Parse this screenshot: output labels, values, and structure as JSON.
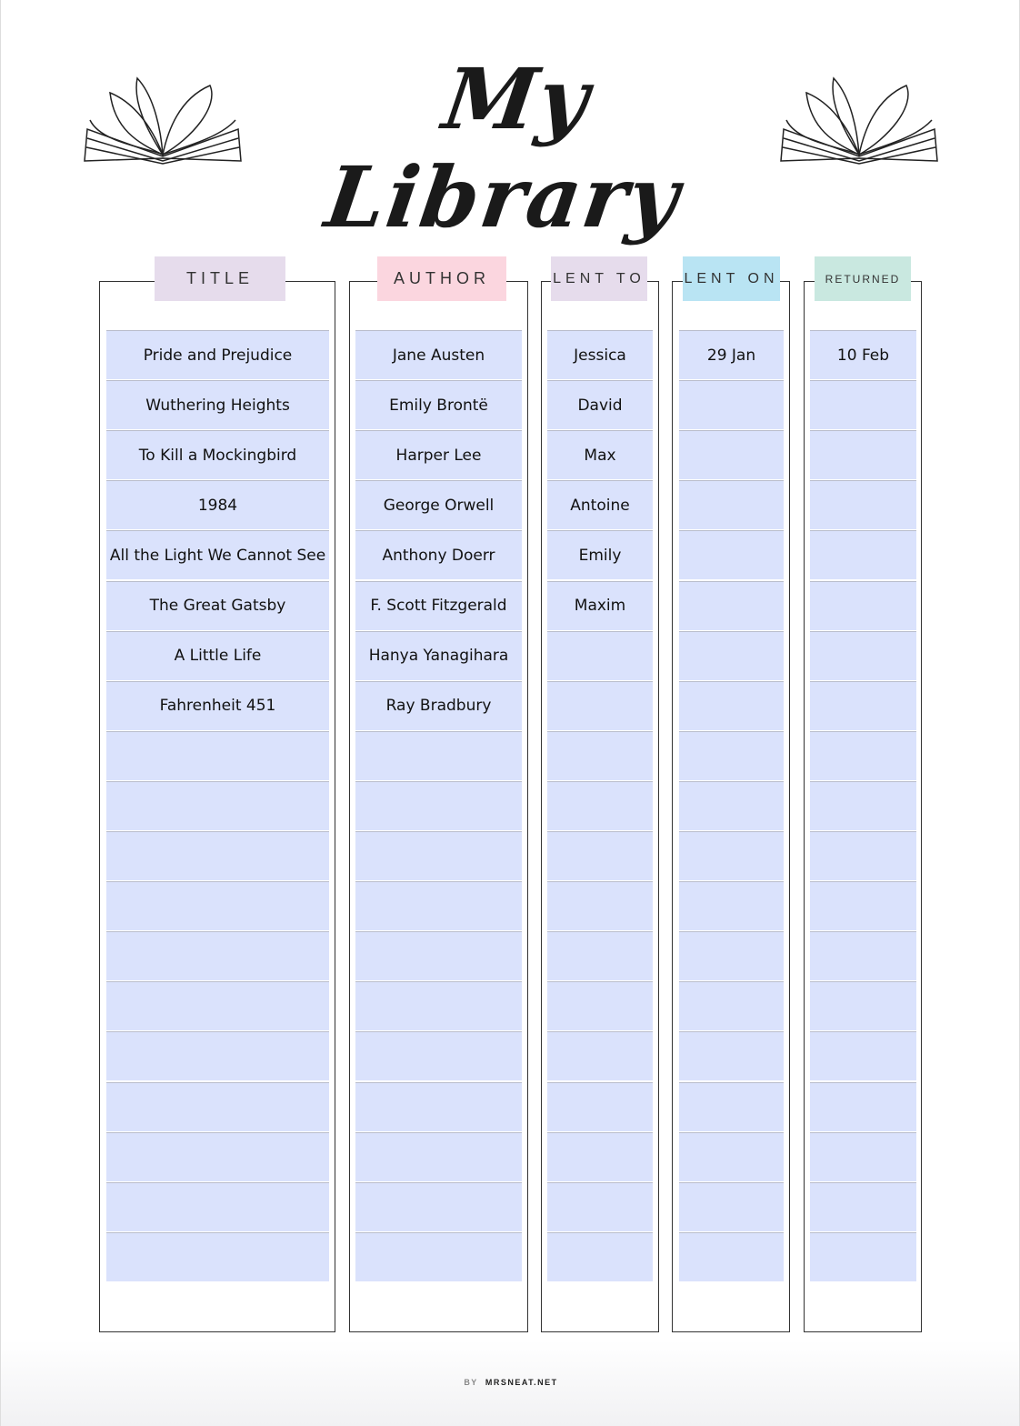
{
  "header": {
    "title": "My Library"
  },
  "columns": [
    {
      "key": "title",
      "label": "TITLE",
      "color": "#e6dcec"
    },
    {
      "key": "author",
      "label": "AUTHOR",
      "color": "#fbd6df"
    },
    {
      "key": "lent_to",
      "label": "LENT TO",
      "color": "#e6dcec"
    },
    {
      "key": "lent_on",
      "label": "LENT ON",
      "color": "#b9e4f3"
    },
    {
      "key": "returned",
      "label": "RETURNED",
      "color": "#c9e8e0"
    }
  ],
  "rows": [
    {
      "title": "Pride and Prejudice",
      "author": "Jane Austen",
      "lent_to": "Jessica",
      "lent_on": "29 Jan",
      "returned": "10 Feb"
    },
    {
      "title": "Wuthering Heights",
      "author": "Emily Brontë",
      "lent_to": "David",
      "lent_on": "",
      "returned": ""
    },
    {
      "title": "To Kill a Mockingbird",
      "author": "Harper Lee",
      "lent_to": "Max",
      "lent_on": "",
      "returned": ""
    },
    {
      "title": "1984",
      "author": "George Orwell",
      "lent_to": "Antoine",
      "lent_on": "",
      "returned": ""
    },
    {
      "title": "All the Light We Cannot See",
      "author": "Anthony Doerr",
      "lent_to": "Emily",
      "lent_on": "",
      "returned": ""
    },
    {
      "title": "The Great Gatsby",
      "author": "F. Scott Fitzgerald",
      "lent_to": "Maxim",
      "lent_on": "",
      "returned": ""
    },
    {
      "title": "A Little Life",
      "author": "Hanya Yanagihara",
      "lent_to": "",
      "lent_on": "",
      "returned": ""
    },
    {
      "title": "Fahrenheit 451",
      "author": "Ray Bradbury",
      "lent_to": "",
      "lent_on": "",
      "returned": ""
    },
    {},
    {},
    {},
    {},
    {},
    {},
    {},
    {},
    {},
    {},
    {}
  ],
  "footer": {
    "by": "BY",
    "site": "MRSNEAT.NET"
  }
}
